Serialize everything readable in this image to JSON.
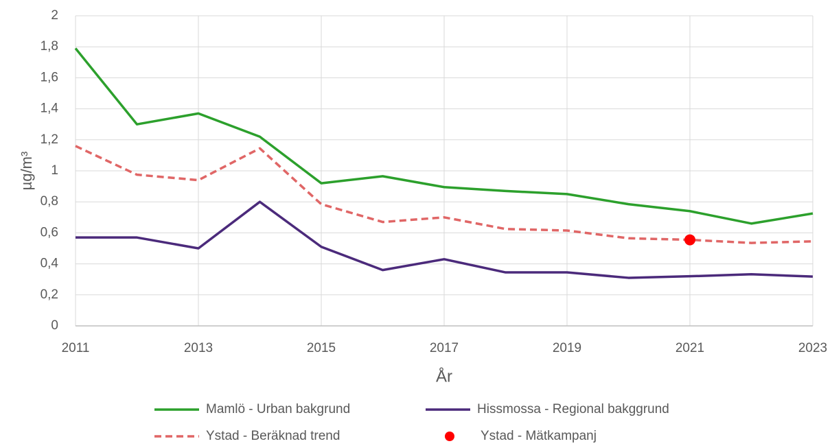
{
  "chart_data": {
    "type": "line",
    "y_label": "µg/m³",
    "x_label": "År",
    "xlim": [
      2011,
      2023
    ],
    "xticks": [
      2011,
      2013,
      2015,
      2017,
      2019,
      2021,
      2023
    ],
    "ylim": [
      0,
      2
    ],
    "yticks": [
      0,
      {
        "value": 0.2,
        "label": "0,2"
      },
      {
        "value": 0.4,
        "label": "0,4"
      },
      {
        "value": 0.6,
        "label": "0,6"
      },
      {
        "value": 0.8,
        "label": "0,8"
      },
      1,
      {
        "value": 1.2,
        "label": "1,2"
      },
      {
        "value": 1.4,
        "label": "1,4"
      },
      {
        "value": 1.6,
        "label": "1,6"
      },
      {
        "value": 1.8,
        "label": "1,8"
      },
      2
    ],
    "grid": true,
    "series": [
      {
        "name": "Mamlö - Urban bakgrund",
        "color": "#2ca02c",
        "style": "solid",
        "x": [
          2011,
          2012,
          2013,
          2014,
          2015,
          2016,
          2017,
          2018,
          2019,
          2020,
          2021,
          2022,
          2023
        ],
        "values": [
          1.79,
          1.3,
          1.37,
          1.22,
          0.92,
          0.965,
          0.895,
          0.87,
          0.85,
          0.785,
          0.74,
          0.66,
          0.725
        ]
      },
      {
        "name": "Hissmossa - Regional bakggrund",
        "color": "#4b2a7b",
        "style": "solid",
        "x": [
          2011,
          2012,
          2013,
          2014,
          2015,
          2016,
          2017,
          2018,
          2019,
          2020,
          2021,
          2022,
          2023
        ],
        "values": [
          0.57,
          0.57,
          0.5,
          0.8,
          0.51,
          0.36,
          0.43,
          0.345,
          0.345,
          0.31,
          0.32,
          0.333,
          0.318
        ]
      },
      {
        "name": "Ystad - Beräknad trend",
        "color": "#e06666",
        "style": "dashed",
        "x": [
          2011,
          2012,
          2013,
          2014,
          2015,
          2016,
          2017,
          2018,
          2019,
          2020,
          2021,
          2022,
          2023
        ],
        "values": [
          1.16,
          0.975,
          0.94,
          1.145,
          0.785,
          0.67,
          0.7,
          0.625,
          0.615,
          0.565,
          0.555,
          0.535,
          0.545
        ]
      },
      {
        "name": "Ystad - Mätkampanj",
        "color": "#ff0000",
        "style": "marker",
        "x": [
          2021
        ],
        "values": [
          0.555
        ]
      }
    ]
  }
}
